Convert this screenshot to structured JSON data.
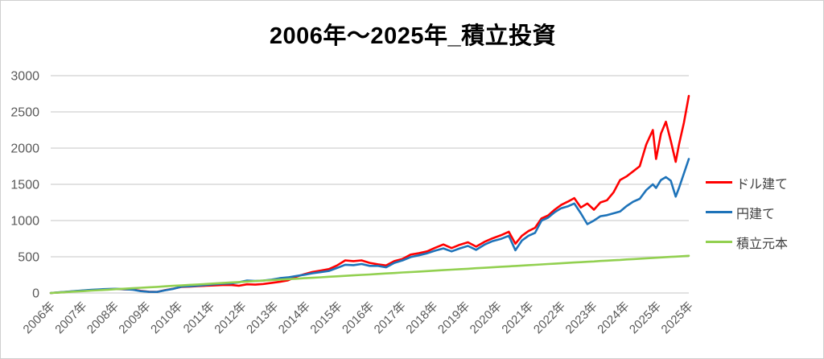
{
  "chart_data": {
    "type": "line",
    "title": "2006年～2025年_積立投資",
    "xlabel": "",
    "ylabel": "",
    "ylim": [
      0,
      3000
    ],
    "yticks": [
      0,
      500,
      1000,
      1500,
      2000,
      2500,
      3000
    ],
    "x_range": [
      2006,
      2025.5
    ],
    "grid": "horizontal",
    "legend_position": "right",
    "grid_color": "#d9d9d9",
    "axis_text_color": "#595959",
    "title_color": "#000000",
    "xtick_labels": [
      "2006年",
      "2007年",
      "2008年",
      "2009年",
      "2010年",
      "2011年",
      "2012年",
      "2013年",
      "2014年",
      "2015年",
      "2016年",
      "2017年",
      "2018年",
      "2019年",
      "2020年",
      "2021年",
      "2022年",
      "2023年",
      "2024年",
      "2025年",
      "2025年"
    ],
    "x": [
      2006.0,
      2006.25,
      2006.5,
      2006.75,
      2007.0,
      2007.25,
      2007.5,
      2007.75,
      2008.0,
      2008.25,
      2008.5,
      2008.75,
      2009.0,
      2009.25,
      2009.5,
      2009.75,
      2010.0,
      2010.25,
      2010.5,
      2010.75,
      2011.0,
      2011.25,
      2011.5,
      2011.75,
      2012.0,
      2012.25,
      2012.5,
      2012.75,
      2013.0,
      2013.25,
      2013.5,
      2013.75,
      2014.0,
      2014.25,
      2014.5,
      2014.75,
      2015.0,
      2015.25,
      2015.5,
      2015.75,
      2016.0,
      2016.25,
      2016.5,
      2016.75,
      2017.0,
      2017.25,
      2017.5,
      2017.75,
      2018.0,
      2018.25,
      2018.5,
      2018.75,
      2019.0,
      2019.25,
      2019.5,
      2019.75,
      2020.0,
      2020.2,
      2020.4,
      2020.6,
      2020.8,
      2021.0,
      2021.2,
      2021.4,
      2021.6,
      2021.8,
      2022.0,
      2022.2,
      2022.4,
      2022.6,
      2022.8,
      2023.0,
      2023.2,
      2023.4,
      2023.6,
      2023.8,
      2024.0,
      2024.2,
      2024.4,
      2024.5,
      2024.65,
      2024.8,
      2024.95,
      2025.1,
      2025.2,
      2025.35,
      2025.5
    ],
    "series": [
      {
        "name": "ドル建て",
        "color": "#ff0000",
        "values": [
          0,
          8,
          16,
          24,
          32,
          40,
          46,
          52,
          56,
          50,
          48,
          30,
          18,
          14,
          40,
          60,
          85,
          88,
          95,
          100,
          105,
          110,
          112,
          100,
          120,
          115,
          125,
          140,
          155,
          175,
          225,
          260,
          290,
          310,
          330,
          380,
          450,
          440,
          450,
          415,
          395,
          380,
          440,
          470,
          530,
          550,
          575,
          625,
          670,
          620,
          665,
          700,
          640,
          705,
          755,
          795,
          845,
          680,
          790,
          855,
          900,
          1030,
          1070,
          1150,
          1215,
          1260,
          1310,
          1180,
          1235,
          1150,
          1250,
          1280,
          1390,
          1560,
          1610,
          1680,
          1750,
          2050,
          2250,
          1850,
          2200,
          2365,
          2100,
          1810,
          2050,
          2350,
          2720
        ]
      },
      {
        "name": "円建て",
        "color": "#1e73b9",
        "values": [
          0,
          9,
          18,
          27,
          36,
          44,
          50,
          56,
          58,
          52,
          46,
          26,
          16,
          14,
          38,
          58,
          88,
          92,
          100,
          110,
          120,
          128,
          132,
          148,
          172,
          165,
          172,
          185,
          205,
          215,
          235,
          252,
          272,
          288,
          305,
          345,
          390,
          385,
          400,
          375,
          375,
          355,
          415,
          450,
          495,
          520,
          548,
          585,
          615,
          575,
          615,
          650,
          595,
          665,
          715,
          745,
          790,
          590,
          725,
          790,
          830,
          1000,
          1040,
          1115,
          1170,
          1195,
          1235,
          1100,
          950,
          1000,
          1060,
          1075,
          1100,
          1125,
          1200,
          1260,
          1300,
          1420,
          1500,
          1450,
          1560,
          1600,
          1550,
          1330,
          1450,
          1650,
          1850
        ]
      },
      {
        "name": "積立元本",
        "color": "#92d050",
        "values": [
          0,
          7,
          13,
          20,
          26,
          33,
          39,
          46,
          53,
          59,
          66,
          72,
          79,
          85,
          92,
          99,
          105,
          112,
          118,
          125,
          131,
          138,
          145,
          151,
          158,
          164,
          171,
          178,
          184,
          191,
          197,
          204,
          210,
          217,
          224,
          230,
          237,
          243,
          250,
          256,
          263,
          270,
          276,
          283,
          289,
          296,
          302,
          309,
          316,
          322,
          329,
          335,
          342,
          348,
          355,
          362,
          368,
          373,
          379,
          384,
          389,
          394,
          400,
          405,
          410,
          415,
          421,
          426,
          431,
          436,
          442,
          447,
          452,
          457,
          463,
          468,
          473,
          479,
          484,
          487,
          491,
          495,
          499,
          502,
          505,
          509,
          513
        ]
      }
    ]
  }
}
